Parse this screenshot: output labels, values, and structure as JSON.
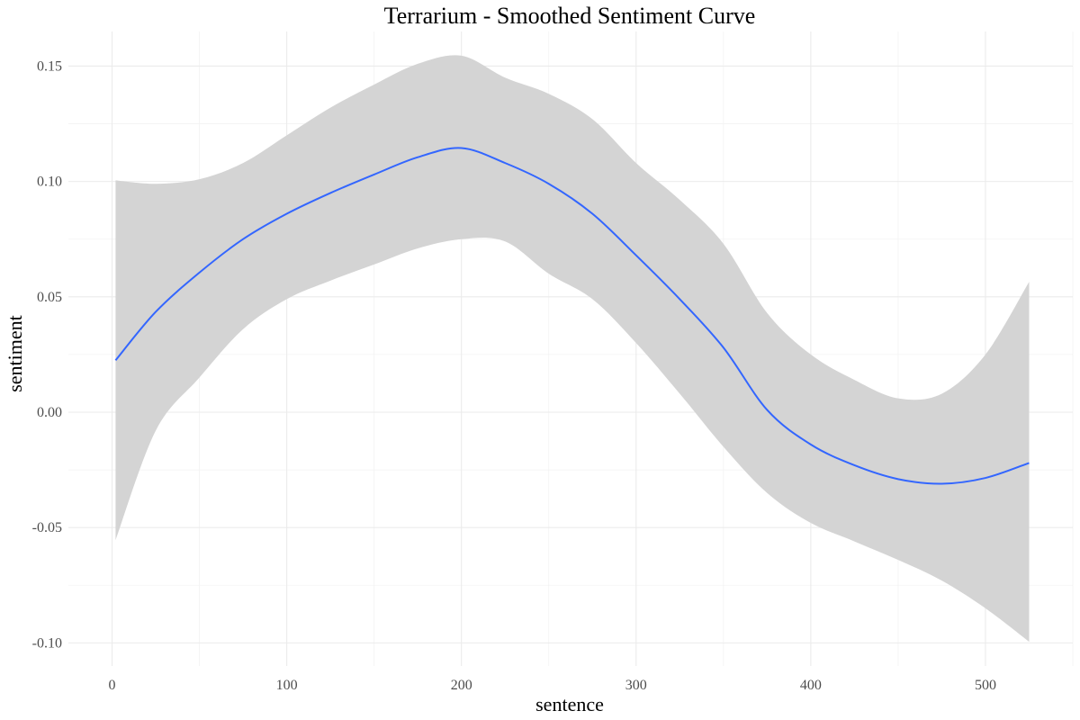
{
  "chart_data": {
    "type": "line",
    "title": "Terrarium - Smoothed Sentiment Curve",
    "xlabel": "sentence",
    "ylabel": "sentiment",
    "xlim": [
      -25,
      550
    ],
    "ylim": [
      -0.11,
      0.165
    ],
    "x_ticks": [
      0,
      100,
      200,
      300,
      400,
      500
    ],
    "x_tick_labels": [
      "0",
      "100",
      "200",
      "300",
      "400",
      "500"
    ],
    "y_ticks": [
      -0.1,
      -0.05,
      0.0,
      0.05,
      0.1,
      0.15
    ],
    "y_tick_labels": [
      "-0.10",
      "-0.05",
      "0.00",
      "0.05",
      "0.10",
      "0.15"
    ],
    "grid": true,
    "legend": "none",
    "line_color": "#3366ff",
    "ribbon_color": "#d4d4d4",
    "series": [
      {
        "x": [
          2,
          25,
          50,
          75,
          100,
          125,
          150,
          175,
          200,
          225,
          250,
          275,
          300,
          325,
          350,
          375,
          400,
          425,
          450,
          475,
          500,
          525
        ],
        "y": [
          0.0225,
          0.0435,
          0.0605,
          0.075,
          0.086,
          0.095,
          0.103,
          0.1105,
          0.1145,
          0.108,
          0.099,
          0.086,
          0.068,
          0.049,
          0.028,
          0.001,
          -0.014,
          -0.023,
          -0.029,
          -0.031,
          -0.0285,
          -0.022
        ],
        "ymin": [
          -0.0555,
          -0.008,
          0.015,
          0.036,
          0.049,
          0.057,
          0.064,
          0.071,
          0.075,
          0.074,
          0.06,
          0.049,
          0.03,
          0.008,
          -0.015,
          -0.035,
          -0.048,
          -0.056,
          -0.064,
          -0.073,
          -0.085,
          -0.0995
        ],
        "ymax": [
          0.1005,
          0.099,
          0.101,
          0.108,
          0.12,
          0.132,
          0.142,
          0.151,
          0.1545,
          0.145,
          0.138,
          0.127,
          0.108,
          0.092,
          0.073,
          0.043,
          0.025,
          0.014,
          0.006,
          0.008,
          0.025,
          0.0565
        ]
      }
    ]
  }
}
